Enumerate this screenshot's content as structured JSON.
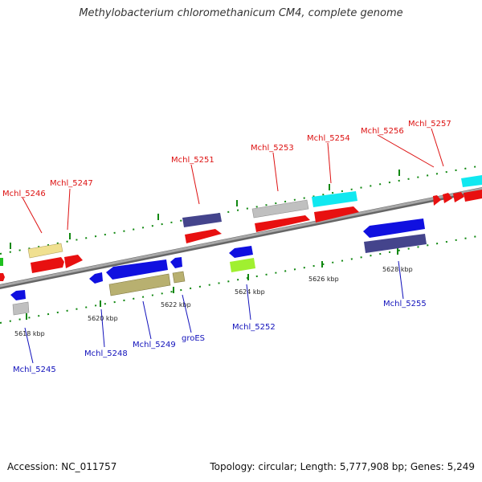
{
  "title": "Methylobacterium chloromethanicum CM4, complete genome",
  "footer": {
    "accession": "Accession: NC_011757",
    "summary": "Topology: circular; Length: 5,777,908 bp; Genes: 5,249"
  },
  "colors": {
    "red": "#e81010",
    "blue": "#1010e0",
    "navy": "#44448c",
    "khaki": "#b8b070",
    "cyan": "#10e8f0",
    "gray": "#c0c0c0",
    "lightyellow": "#f0e090",
    "lime": "#a0f030",
    "green": "#20c020",
    "backbone": "#888888",
    "tick_green": "#118811"
  },
  "ticks": [
    "5618 kbp",
    "5620 kbp",
    "5622 kbp",
    "5624 kbp",
    "5626 kbp",
    "5628 kbp"
  ],
  "labels": {
    "mchl_5246": "Mchl_5246",
    "mchl_5247": "Mchl_5247",
    "mchl_5251": "Mchl_5251",
    "mchl_5253": "Mchl_5253",
    "mchl_5254": "Mchl_5254",
    "mchl_5256": "Mchl_5256",
    "mchl_5257": "Mchl_5257",
    "mchl_5245": "Mchl_5245",
    "mchl_5248": "Mchl_5248",
    "mchl_5249": "Mchl_5249",
    "groes": "groES",
    "mchl_5252": "Mchl_5252",
    "mchl_5255": "Mchl_5255"
  }
}
